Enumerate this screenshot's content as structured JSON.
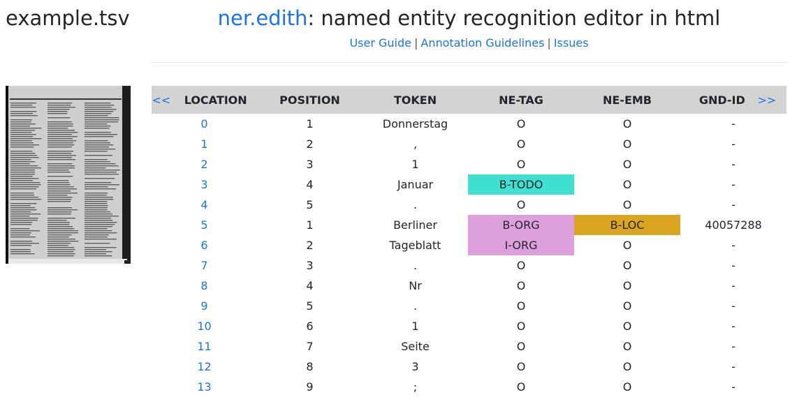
{
  "file_name": "example.tsv",
  "app": {
    "title_brand": "ner.edith",
    "title_rest": ": named entity recognition editor in html",
    "links": [
      "User Guide",
      "Annotation Guidelines",
      "Issues"
    ],
    "separator": "|"
  },
  "table": {
    "prev_label": "<<",
    "next_label": ">>",
    "columns": [
      "LOCATION",
      "POSITION",
      "TOKEN",
      "NE-TAG",
      "NE-EMB",
      "GND-ID"
    ],
    "rows": [
      {
        "location": "0",
        "position": "1",
        "token": "Donnerstag",
        "ne_tag": "O",
        "ne_emb": "O",
        "gnd_id": "-"
      },
      {
        "location": "1",
        "position": "2",
        "token": ",",
        "ne_tag": "O",
        "ne_emb": "O",
        "gnd_id": "-"
      },
      {
        "location": "2",
        "position": "3",
        "token": "1",
        "ne_tag": "O",
        "ne_emb": "O",
        "gnd_id": "-"
      },
      {
        "location": "3",
        "position": "4",
        "token": "Januar",
        "ne_tag": "B-TODO",
        "ne_emb": "O",
        "gnd_id": "-"
      },
      {
        "location": "4",
        "position": "5",
        "token": ".",
        "ne_tag": "O",
        "ne_emb": "O",
        "gnd_id": "-"
      },
      {
        "location": "5",
        "position": "1",
        "token": "Berliner",
        "ne_tag": "B-ORG",
        "ne_emb": "B-LOC",
        "gnd_id": "40057288"
      },
      {
        "location": "6",
        "position": "2",
        "token": "Tageblatt",
        "ne_tag": "I-ORG",
        "ne_emb": "O",
        "gnd_id": "-"
      },
      {
        "location": "7",
        "position": "3",
        "token": ".",
        "ne_tag": "O",
        "ne_emb": "O",
        "gnd_id": "-"
      },
      {
        "location": "8",
        "position": "4",
        "token": "Nr",
        "ne_tag": "O",
        "ne_emb": "O",
        "gnd_id": "-"
      },
      {
        "location": "9",
        "position": "5",
        "token": ".",
        "ne_tag": "O",
        "ne_emb": "O",
        "gnd_id": "-"
      },
      {
        "location": "10",
        "position": "6",
        "token": "1",
        "ne_tag": "O",
        "ne_emb": "O",
        "gnd_id": "-"
      },
      {
        "location": "11",
        "position": "7",
        "token": "Seite",
        "ne_tag": "O",
        "ne_emb": "O",
        "gnd_id": "-"
      },
      {
        "location": "12",
        "position": "8",
        "token": "3",
        "ne_tag": "O",
        "ne_emb": "O",
        "gnd_id": "-"
      },
      {
        "location": "13",
        "position": "9",
        "token": ";",
        "ne_tag": "O",
        "ne_emb": "O",
        "gnd_id": "-"
      }
    ]
  },
  "tag_colors": {
    "B-TODO": "#40e0d0",
    "B-ORG": "#dda0dd",
    "I-ORG": "#dda0dd",
    "B-LOC": "#daa520"
  }
}
